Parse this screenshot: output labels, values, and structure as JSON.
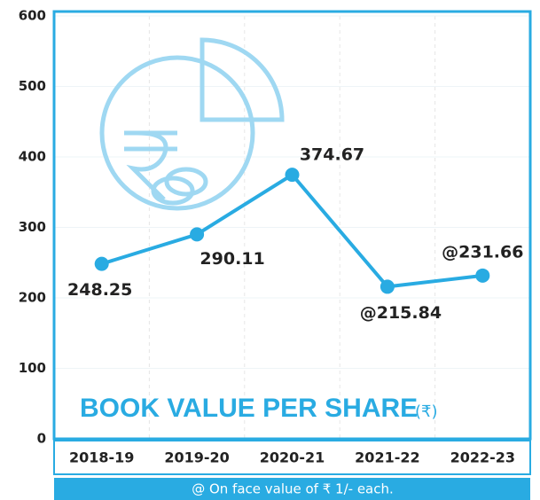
{
  "chart_data": {
    "type": "line",
    "title": "BOOK VALUE PER SHARE",
    "unit": "(₹)",
    "footnote": "@ On face value of  ₹ 1/- each.",
    "categories": [
      "2018-19",
      "2019-20",
      "2020-21",
      "2021-22",
      "2022-23"
    ],
    "values": [
      248.25,
      290.11,
      374.67,
      215.84,
      231.66
    ],
    "value_labels": [
      "248.25",
      "290.11",
      "374.67",
      "@215.84",
      "@231.66"
    ],
    "color": "#29abe2",
    "highlight_color": "#29abe2",
    "ylim": [
      0,
      600
    ],
    "yticks": [
      0,
      100,
      200,
      300,
      400,
      500,
      600
    ],
    "grid": true
  }
}
